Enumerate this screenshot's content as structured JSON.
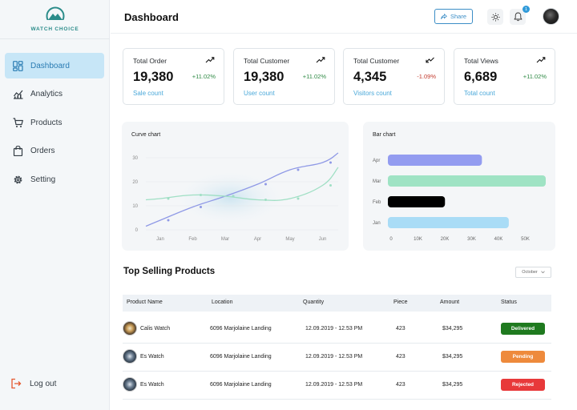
{
  "brand": {
    "name": "WATCH CHOICE"
  },
  "sidebar": {
    "items": [
      {
        "label": "Dashboard",
        "icon": "dashboard-icon",
        "active": true
      },
      {
        "label": "Analytics",
        "icon": "analytics-icon"
      },
      {
        "label": "Products",
        "icon": "cart-icon"
      },
      {
        "label": "Orders",
        "icon": "bag-icon"
      },
      {
        "label": "Setting",
        "icon": "gear-icon"
      }
    ],
    "logout_label": "Log out"
  },
  "header": {
    "title": "Dashboard",
    "share_label": "Share",
    "notification_count": "1"
  },
  "stats": [
    {
      "title": "Total Order",
      "value": "19,380",
      "change": "+11.02%",
      "trend": "up",
      "sub": "Sale count"
    },
    {
      "title": "Total Customer",
      "value": "19,380",
      "change": "+11.02%",
      "trend": "up",
      "sub": "User count"
    },
    {
      "title": "Total Customer",
      "value": "4,345",
      "change": "-1.09%",
      "trend": "down",
      "sub": "Visitors count"
    },
    {
      "title": "Total Views",
      "value": "6,689",
      "change": "+11.02%",
      "trend": "up",
      "sub": "Total count"
    }
  ],
  "chart_data": [
    {
      "type": "line",
      "title": "Curve chart",
      "x": [
        "Jan",
        "Feb",
        "Mar",
        "Apr",
        "May",
        "Jun"
      ],
      "y_ticks": [
        0,
        10,
        20,
        30
      ],
      "ylim": [
        0,
        30
      ],
      "series": [
        {
          "values": [
            4,
            9.5,
            14,
            19,
            25,
            28
          ],
          "color": "#8f99e6"
        },
        {
          "values": [
            13,
            14.5,
            14,
            12.5,
            13,
            18.5
          ],
          "color": "#9fdfc4"
        }
      ]
    },
    {
      "type": "bar",
      "orientation": "horizontal",
      "title": "Bar chart",
      "categories": [
        "Apr",
        "Mar",
        "Feb",
        "Jan"
      ],
      "values": [
        28000,
        47000,
        17000,
        36000
      ],
      "colors": [
        "#939cf0",
        "#9fe3c4",
        "#000000",
        "#a9dcf6"
      ],
      "x_ticks": [
        "0",
        "10K",
        "20K",
        "30K",
        "40K",
        "50K"
      ],
      "xlim": [
        0,
        50000
      ]
    }
  ],
  "table": {
    "title": "Top Selling Products",
    "filter_value": "October",
    "headers": [
      "Product Name",
      "Location",
      "Quantity",
      "Piece",
      "Amount",
      "Status"
    ],
    "rows": [
      {
        "name": "Calis Watch",
        "location": "6096 Marjolaine Landing",
        "quantity": "12.09.2019 - 12.53 PM",
        "piece": "423",
        "amount": "$34,295",
        "status": "Delivered",
        "status_color": "#1f7a1f"
      },
      {
        "name": "Es Watch",
        "location": "6096 Marjolaine Landing",
        "quantity": "12.09.2019 - 12.53 PM",
        "piece": "423",
        "amount": "$34,295",
        "status": "Pending",
        "status_color": "#ee8a3c"
      },
      {
        "name": "Es Watch",
        "location": "6096 Marjolaine Landing",
        "quantity": "12.09.2019 - 12.53 PM",
        "piece": "423",
        "amount": "$34,295",
        "status": "Rejected",
        "status_color": "#e8393a"
      }
    ]
  }
}
